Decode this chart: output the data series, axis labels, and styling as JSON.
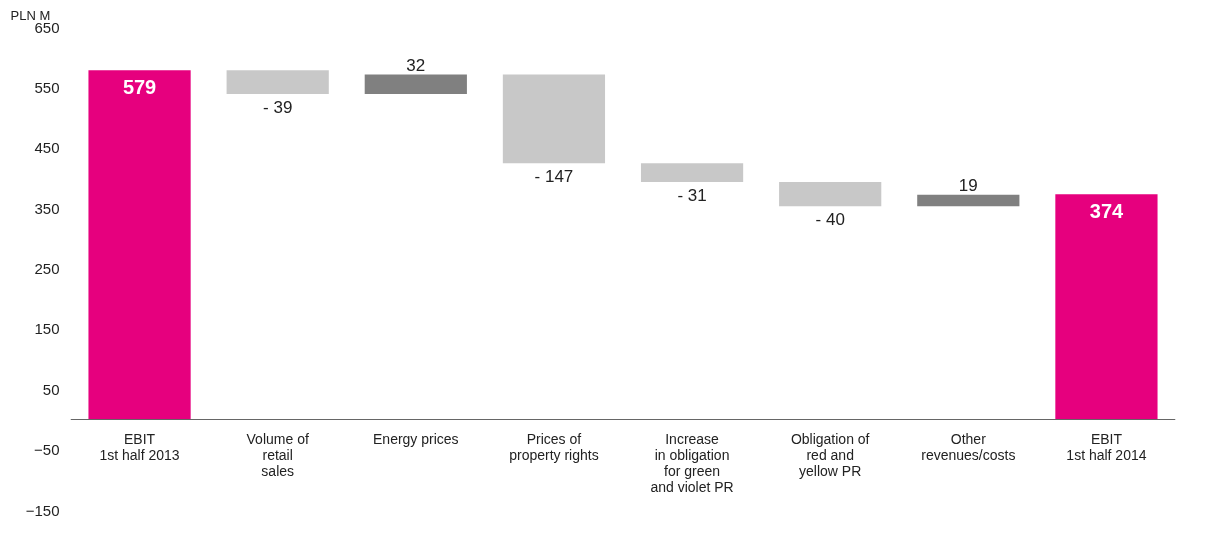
{
  "chart_data": {
    "type": "bar",
    "ylabel": "PLN M",
    "categories": [
      "EBIT\n1st half 2013",
      "Volume of\nretail\nsales",
      "Energy prices",
      "Prices of\nproperty rights",
      "Increase\nin obligation\nfor green\nand violet PR",
      "Obligation of\nred and\nyellow PR",
      "Other\nrevenues/costs",
      "EBIT\n1st half 2014"
    ],
    "values": [
      579,
      -39,
      32,
      -147,
      -31,
      -40,
      19,
      374
    ],
    "base": [
      0,
      579,
      540,
      572,
      425,
      394,
      354,
      0
    ],
    "colors": [
      "#e6007e",
      "#c8c8c8",
      "#808080",
      "#c8c8c8",
      "#c8c8c8",
      "#c8c8c8",
      "#808080",
      "#e6007e"
    ],
    "value_labels": [
      "579",
      "- 39",
      "32",
      "- 147",
      "- 31",
      "- 40",
      "19",
      "374"
    ],
    "ylim": [
      -150,
      650
    ],
    "yticks": [
      -150,
      -50,
      50,
      150,
      250,
      350,
      450,
      550,
      650
    ],
    "grid": false
  }
}
